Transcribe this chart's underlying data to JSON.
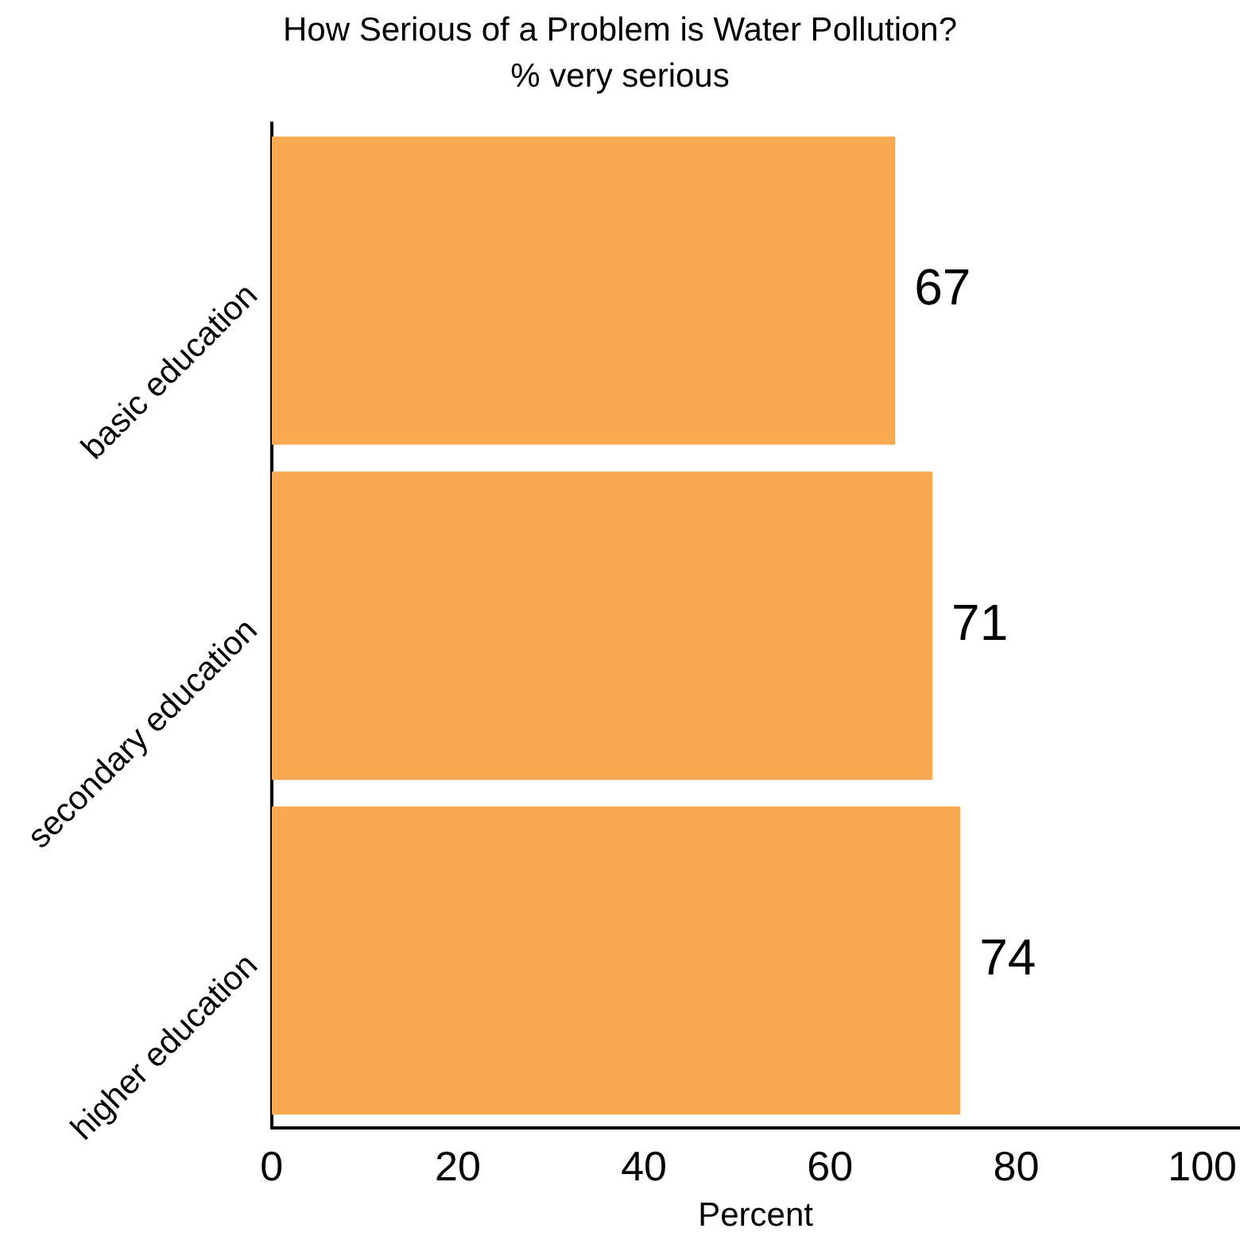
{
  "chart_data": {
    "type": "bar",
    "orientation": "horizontal",
    "title": "How Serious of a Problem is Water Pollution?",
    "subtitle": "% very serious",
    "xlabel": "Percent",
    "categories": [
      "basic education",
      "secondary education",
      "higher education"
    ],
    "values": [
      67,
      71,
      74
    ],
    "color": "#f9a952",
    "data_labels": true,
    "xlim": [
      0,
      104
    ],
    "xticks": [
      0,
      20,
      40,
      60,
      80,
      100
    ],
    "grid": false,
    "legend": false
  }
}
